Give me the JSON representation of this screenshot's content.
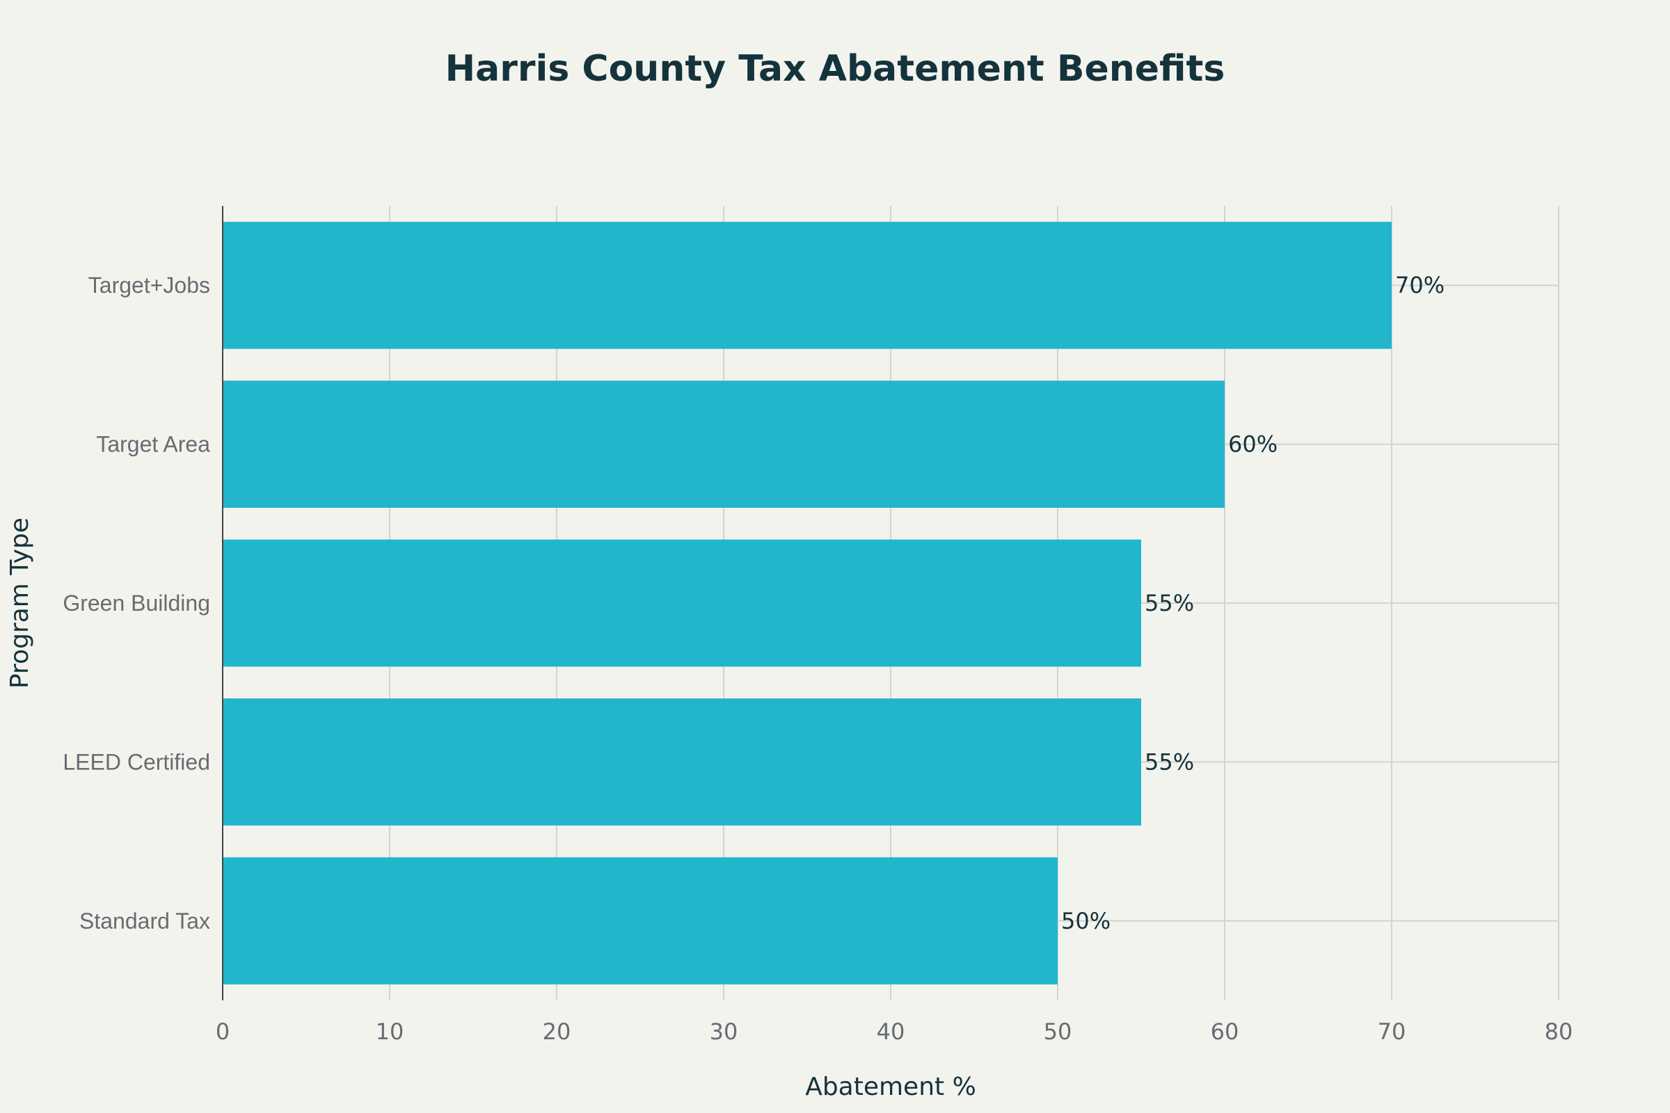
{
  "chart_data": {
    "type": "bar",
    "orientation": "horizontal",
    "title": "Harris County Tax Abatement Benefits",
    "xlabel": "Abatement %",
    "ylabel": "Program Type",
    "categories": [
      "Standard Tax",
      "LEED Certified",
      "Green Building",
      "Target Area",
      "Target+Jobs"
    ],
    "values": [
      50,
      55,
      55,
      60,
      70
    ],
    "data_labels": [
      "50%",
      "55%",
      "55%",
      "60%",
      "70%"
    ],
    "xlim": [
      0,
      80
    ],
    "x_ticks": [
      0,
      10,
      20,
      30,
      40,
      50,
      60,
      70,
      80
    ],
    "x_tick_labels": [
      "0",
      "10",
      "20",
      "30",
      "40",
      "50",
      "60",
      "70",
      "80"
    ],
    "bar_color": "#21b6cc",
    "background_color": "#f3f3ee",
    "grid": true,
    "legend": "none"
  }
}
